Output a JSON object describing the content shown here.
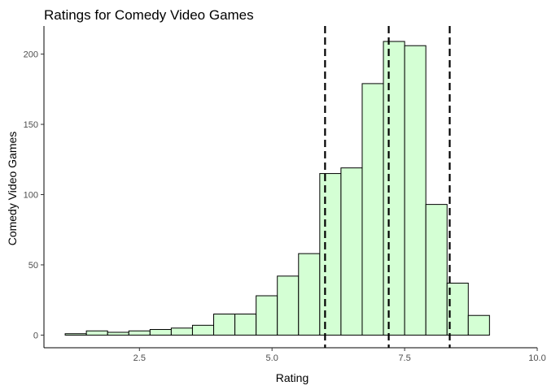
{
  "chart_data": {
    "type": "bar",
    "title": "Ratings for Comedy Video Games",
    "xlabel": "Rating",
    "ylabel": "Comedy Video Games",
    "xlim": [
      0.7,
      10.0
    ],
    "ylim": [
      -9,
      220
    ],
    "xticks": [
      2.5,
      5.0,
      7.5,
      10.0
    ],
    "xtick_labels": [
      "2.5",
      "5.0",
      "7.5",
      "10.0"
    ],
    "yticks": [
      0,
      50,
      100,
      150,
      200
    ],
    "ytick_labels": [
      "0",
      "50",
      "100",
      "150",
      "200"
    ],
    "bin_width": 0.4,
    "bins": [
      {
        "left": 1.1,
        "value": 1
      },
      {
        "left": 1.5,
        "value": 3
      },
      {
        "left": 1.9,
        "value": 2
      },
      {
        "left": 2.3,
        "value": 3
      },
      {
        "left": 2.7,
        "value": 4
      },
      {
        "left": 3.1,
        "value": 5
      },
      {
        "left": 3.5,
        "value": 7
      },
      {
        "left": 3.9,
        "value": 15
      },
      {
        "left": 4.3,
        "value": 15
      },
      {
        "left": 4.7,
        "value": 28
      },
      {
        "left": 5.1,
        "value": 42
      },
      {
        "left": 5.5,
        "value": 58
      },
      {
        "left": 5.9,
        "value": 115
      },
      {
        "left": 6.3,
        "value": 119
      },
      {
        "left": 6.7,
        "value": 179
      },
      {
        "left": 7.1,
        "value": 209
      },
      {
        "left": 7.5,
        "value": 206
      },
      {
        "left": 7.9,
        "value": 93
      },
      {
        "left": 8.3,
        "value": 37
      },
      {
        "left": 8.7,
        "value": 14
      }
    ],
    "reference_lines": [
      6.0,
      7.2,
      8.35
    ],
    "colors": {
      "fill": "#d4ffd4",
      "stroke": "#000000",
      "reference": "#000000",
      "tick_text": "#4d4d4d"
    },
    "grid": false
  }
}
